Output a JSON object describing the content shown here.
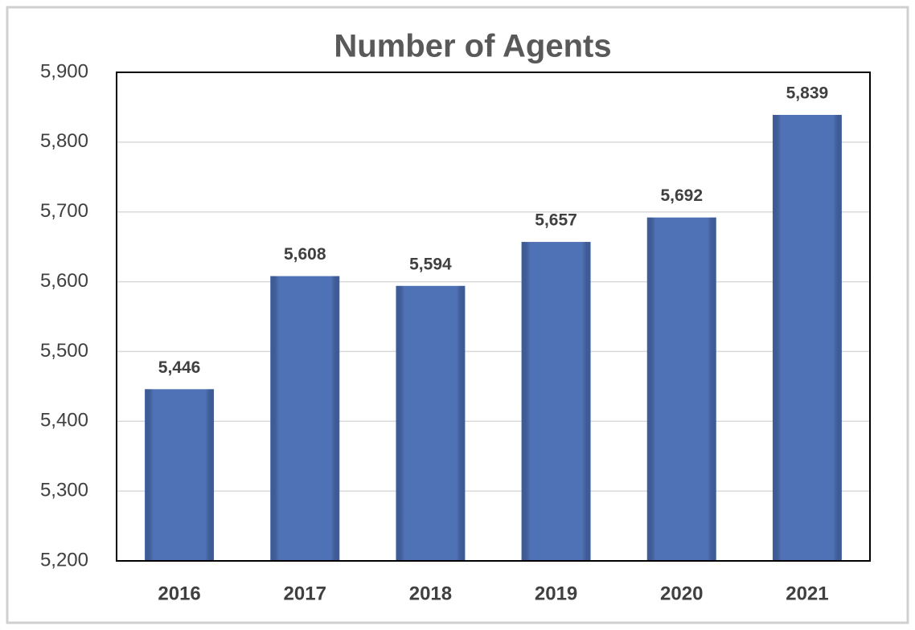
{
  "chart_data": {
    "type": "bar",
    "title": "Number of Agents",
    "categories": [
      "2016",
      "2017",
      "2018",
      "2019",
      "2020",
      "2021"
    ],
    "values": [
      5446,
      5608,
      5594,
      5657,
      5692,
      5839
    ],
    "value_labels": [
      "5,446",
      "5,608",
      "5,594",
      "5,657",
      "5,692",
      "5,839"
    ],
    "color": "#4f71b5",
    "ylim": [
      5200,
      5900
    ],
    "yticks": [
      {
        "value": 5200,
        "label": "5,200"
      },
      {
        "value": 5300,
        "label": "5,300"
      },
      {
        "value": 5400,
        "label": "5,400"
      },
      {
        "value": 5500,
        "label": "5,500"
      },
      {
        "value": 5600,
        "label": "5,600"
      },
      {
        "value": 5700,
        "label": "5,700"
      },
      {
        "value": 5800,
        "label": "5,800"
      },
      {
        "value": 5900,
        "label": "5,900"
      }
    ],
    "grid": true
  }
}
